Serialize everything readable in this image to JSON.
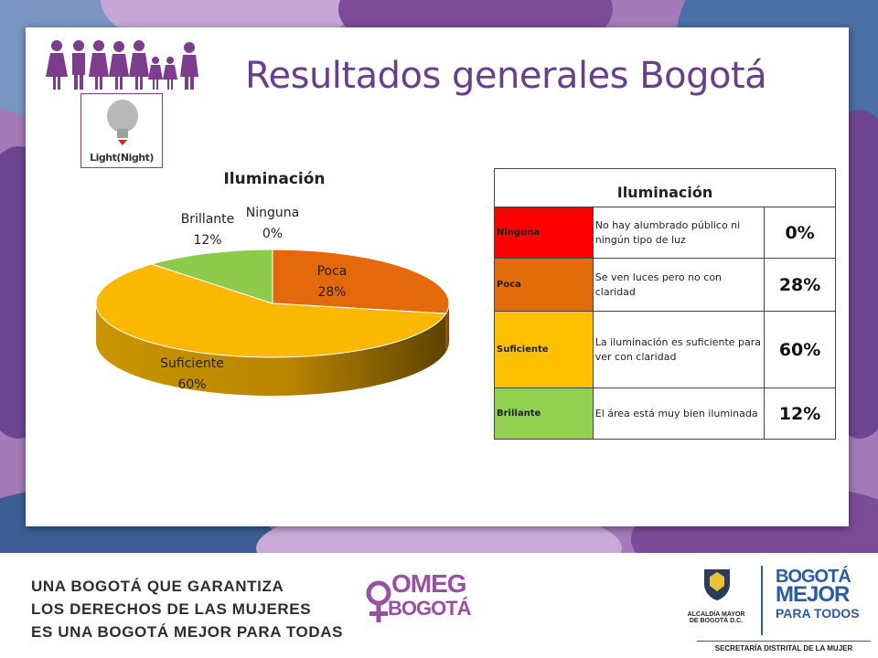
{
  "slide": {
    "title": "Resultados generales Bogotá",
    "light_icon_label": "Light(Night)"
  },
  "chart_data": {
    "type": "pie",
    "title": "Iluminación",
    "categories": [
      "Ninguna",
      "Poca",
      "Suficiente",
      "Brillante"
    ],
    "values": [
      0,
      28,
      60,
      12
    ],
    "value_labels": [
      "0%",
      "28%",
      "60%",
      "12%"
    ],
    "colors": [
      "#e41e1e",
      "#e3690b",
      "#fab900",
      "#8ecb4b"
    ],
    "three_d": true
  },
  "table": {
    "header": "Iluminación",
    "rows": [
      {
        "category": "Ninguna",
        "description": "No hay alumbrado público ni ningún tipo de luz",
        "percent": "0%",
        "color": "#ff0000"
      },
      {
        "category": "Poca",
        "description": "Se ven luces pero no con claridad",
        "percent": "28%",
        "color": "#e36c0a"
      },
      {
        "category": "Suficiente",
        "description": "La iluminación es suficiente para ver con claridad",
        "percent": "60%",
        "color": "#ffc000"
      },
      {
        "category": "Brillante",
        "description": "El área está muy bien iluminada",
        "percent": "12%",
        "color": "#92d050"
      }
    ]
  },
  "footer": {
    "slogan_lines": [
      "UNA BOGOTÁ QUE GARANTIZA",
      "LOS DERECHOS DE LAS MUJERES",
      "ES UNA BOGOTÁ MEJOR PARA TODAS"
    ],
    "omeg_top": "OMEG",
    "omeg_bottom": "BOGOTÁ",
    "alcaldia": "ALCALDÍA MAYOR DE BOGOTÁ D.C.",
    "bogota_line1": "BOGOTÁ",
    "bogota_line2": "MEJOR",
    "bogota_line3": "PARA TODOS",
    "secretaria": "SECRETARÍA DISTRITAL DE LA MUJER"
  },
  "colors": {
    "title": "#6a3e8a",
    "bg_purple": "#8c5aa6",
    "bg_blue": "#3a5f95"
  }
}
